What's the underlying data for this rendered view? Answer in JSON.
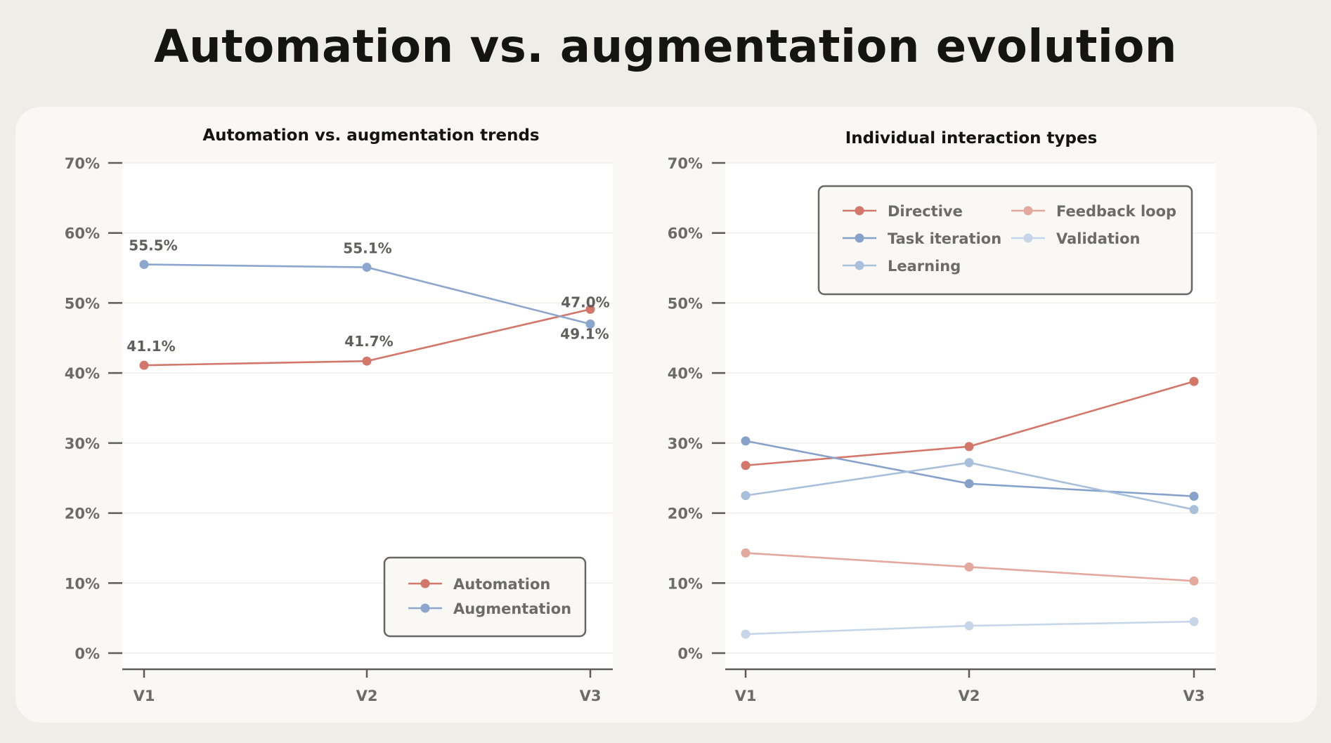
{
  "page": {
    "title": "Automation vs. augmentation evolution"
  },
  "colors": {
    "automation": "#d4776b",
    "augmentation": "#8ca6ce",
    "directive": "#d4776b",
    "feedback_loop": "#e3a89e",
    "task_iteration": "#86a2cb",
    "validation": "#c6d6e8",
    "learning": "#a9c0dc",
    "axis": "#5d5d5a",
    "tick_text": "#6b6b68",
    "plot_bg": "#ffffff"
  },
  "chart_data": [
    {
      "type": "line",
      "title": "Automation vs. augmentation trends",
      "x": [
        "V1",
        "V2",
        "V3"
      ],
      "ylim": [
        0,
        70
      ],
      "yticks": [
        "0%",
        "10%",
        "20%",
        "30%",
        "40%",
        "50%",
        "60%",
        "70%"
      ],
      "yticks_values": [
        0,
        10,
        20,
        30,
        40,
        50,
        60,
        70
      ],
      "legend_position": "bottom-right",
      "grid": true,
      "series": [
        {
          "name": "Automation",
          "color": "#d4776b",
          "values": [
            41.1,
            41.7,
            49.1
          ],
          "labels": [
            "41.1%",
            "41.7%",
            "49.1%"
          ]
        },
        {
          "name": "Augmentation",
          "color": "#8ca6ce",
          "values": [
            55.5,
            55.1,
            47.0
          ],
          "labels": [
            "55.5%",
            "55.1%",
            "47.0%"
          ]
        }
      ]
    },
    {
      "type": "line",
      "title": "Individual interaction types",
      "x": [
        "V1",
        "V2",
        "V3"
      ],
      "ylim": [
        0,
        70
      ],
      "yticks": [
        "0%",
        "10%",
        "20%",
        "30%",
        "40%",
        "50%",
        "60%",
        "70%"
      ],
      "yticks_values": [
        0,
        10,
        20,
        30,
        40,
        50,
        60,
        70
      ],
      "legend_position": "top",
      "grid": true,
      "series": [
        {
          "name": "Directive",
          "color": "#d4776b",
          "values": [
            26.8,
            29.5,
            38.8
          ]
        },
        {
          "name": "Feedback loop",
          "color": "#e3a89e",
          "values": [
            14.3,
            12.3,
            10.3
          ]
        },
        {
          "name": "Task iteration",
          "color": "#86a2cb",
          "values": [
            30.3,
            24.2,
            22.4
          ]
        },
        {
          "name": "Validation",
          "color": "#c6d6e8",
          "values": [
            2.7,
            3.9,
            4.5
          ]
        },
        {
          "name": "Learning",
          "color": "#a9c0dc",
          "values": [
            22.5,
            27.2,
            20.5
          ]
        }
      ]
    }
  ]
}
